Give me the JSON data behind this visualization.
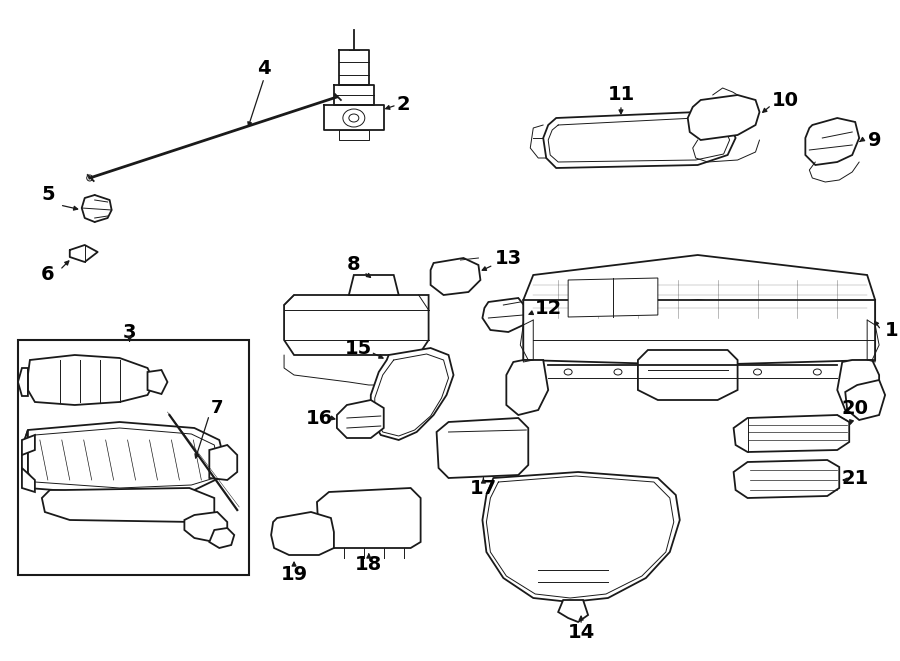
{
  "bg_color": "#ffffff",
  "line_color": "#1a1a1a",
  "label_color": "#000000",
  "fig_width": 9.0,
  "fig_height": 6.61,
  "dpi": 100,
  "lw": 1.3,
  "lw_thin": 0.7,
  "lw_thick": 2.0
}
